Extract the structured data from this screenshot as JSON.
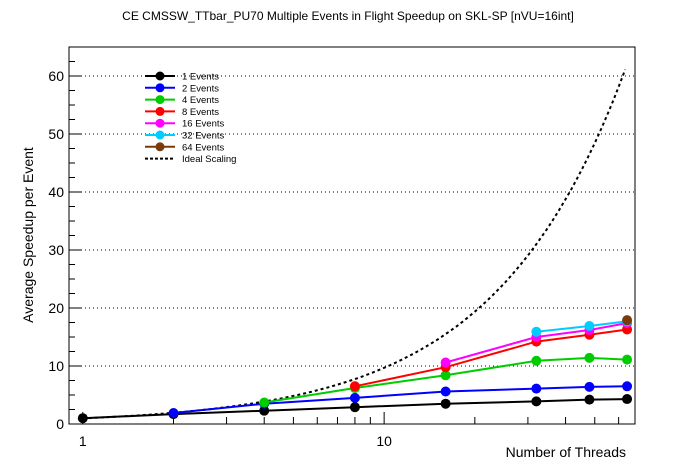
{
  "chart_data": {
    "type": "line",
    "title": "CE CMSSW_TTbar_PU70 Multiple Events in Flight Speedup on SKL-SP [nVU=16int]",
    "xlabel": "Number of Threads",
    "ylabel": "Average Speedup per Event",
    "x_scale": "log",
    "xlim": [
      0.9,
      68
    ],
    "ylim": [
      0,
      65
    ],
    "grid": "horizontal dotted",
    "legend_position": "top-left",
    "x_tick_labels": [
      "1",
      "10"
    ],
    "y_tick_labels": [
      "0",
      "10",
      "20",
      "30",
      "40",
      "50",
      "60"
    ],
    "series": [
      {
        "name": "1 Events",
        "color": "#000000",
        "x": [
          1,
          2,
          4,
          8,
          16,
          32,
          48,
          64
        ],
        "y": [
          1.0,
          1.7,
          2.3,
          2.9,
          3.5,
          3.9,
          4.2,
          4.3
        ]
      },
      {
        "name": "2 Events",
        "color": "#0000ff",
        "x": [
          2,
          4,
          8,
          16,
          32,
          48,
          64
        ],
        "y": [
          1.9,
          3.5,
          4.5,
          5.6,
          6.1,
          6.4,
          6.5
        ]
      },
      {
        "name": "4 Events",
        "color": "#00cc00",
        "x": [
          4,
          8,
          16,
          32,
          48,
          64
        ],
        "y": [
          3.7,
          6.2,
          8.4,
          10.9,
          11.4,
          11.1
        ]
      },
      {
        "name": "8 Events",
        "color": "#ff0000",
        "x": [
          8,
          16,
          32,
          48,
          64
        ],
        "y": [
          6.5,
          9.8,
          14.2,
          15.4,
          16.3
        ]
      },
      {
        "name": "16 Events",
        "color": "#ff00ff",
        "x": [
          16,
          32,
          48,
          64
        ],
        "y": [
          10.6,
          15.0,
          16.2,
          17.4
        ]
      },
      {
        "name": "32 Events",
        "color": "#00ccff",
        "x": [
          32,
          48,
          64
        ],
        "y": [
          15.9,
          16.9,
          17.7
        ]
      },
      {
        "name": "64 Events",
        "color": "#7a3b0a",
        "x": [
          64
        ],
        "y": [
          17.9
        ]
      }
    ],
    "ideal_scaling": {
      "name": "Ideal Scaling",
      "color": "#000000",
      "style": "dotted",
      "x": [
        1,
        2,
        4,
        8,
        16,
        32,
        48,
        64
      ],
      "y": [
        1,
        2,
        4,
        8,
        16,
        32,
        48,
        62
      ]
    }
  }
}
